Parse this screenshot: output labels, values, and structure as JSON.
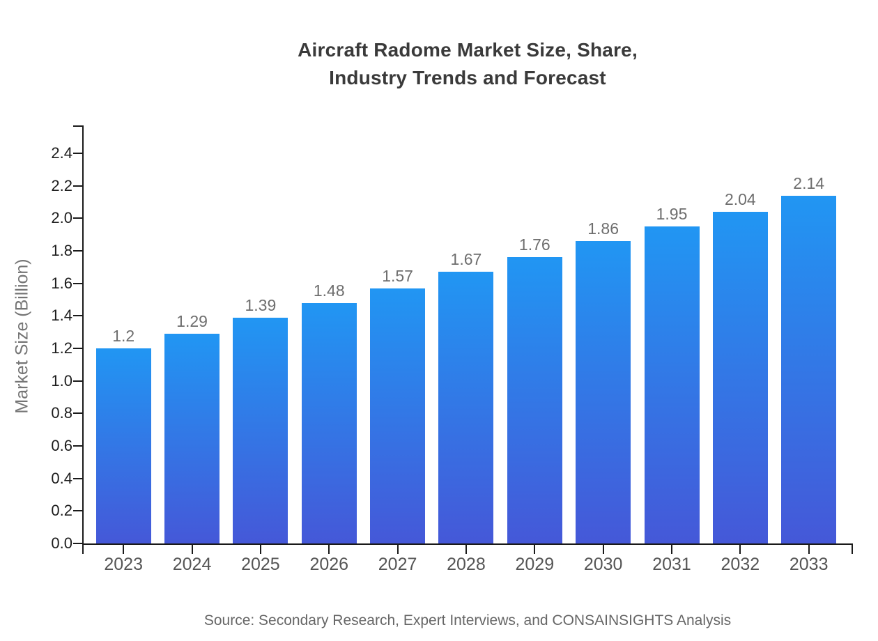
{
  "chart_data": {
    "type": "bar",
    "title": "Aircraft Radome Market Size, Share,\nIndustry Trends and Forecast",
    "xlabel": "",
    "ylabel": "Market Size (Billion)",
    "categories": [
      "2023",
      "2024",
      "2025",
      "2026",
      "2027",
      "2028",
      "2029",
      "2030",
      "2031",
      "2032",
      "2033"
    ],
    "values": [
      1.2,
      1.29,
      1.39,
      1.48,
      1.57,
      1.67,
      1.76,
      1.86,
      1.95,
      2.04,
      2.14
    ],
    "value_labels": [
      "1.2",
      "1.29",
      "1.39",
      "1.48",
      "1.57",
      "1.67",
      "1.76",
      "1.86",
      "1.95",
      "2.04",
      "2.14"
    ],
    "y_tick_labels": [
      "0.0",
      "0.2",
      "0.4",
      "0.6",
      "0.8",
      "1.0",
      "1.2",
      "1.4",
      "1.6",
      "1.8",
      "2.0",
      "2.2",
      "2.4"
    ],
    "ylim": [
      0,
      2.57
    ],
    "grid": false,
    "legend": null,
    "colors": {
      "bar_gradient_top": "#2196F3",
      "bar_gradient_bottom": "#4558D8",
      "axis_line": "#1a1a1a",
      "title_text": "#3a3a3a",
      "tick_label_text": "#1c1c1c",
      "category_label_text": "#555555",
      "value_label_text": "#6e6e6e",
      "axis_title_text": "#757575",
      "source_text": "#666666"
    }
  },
  "source_note": "Source: Secondary Research, Expert Interviews, and CONSAINSIGHTS Analysis"
}
